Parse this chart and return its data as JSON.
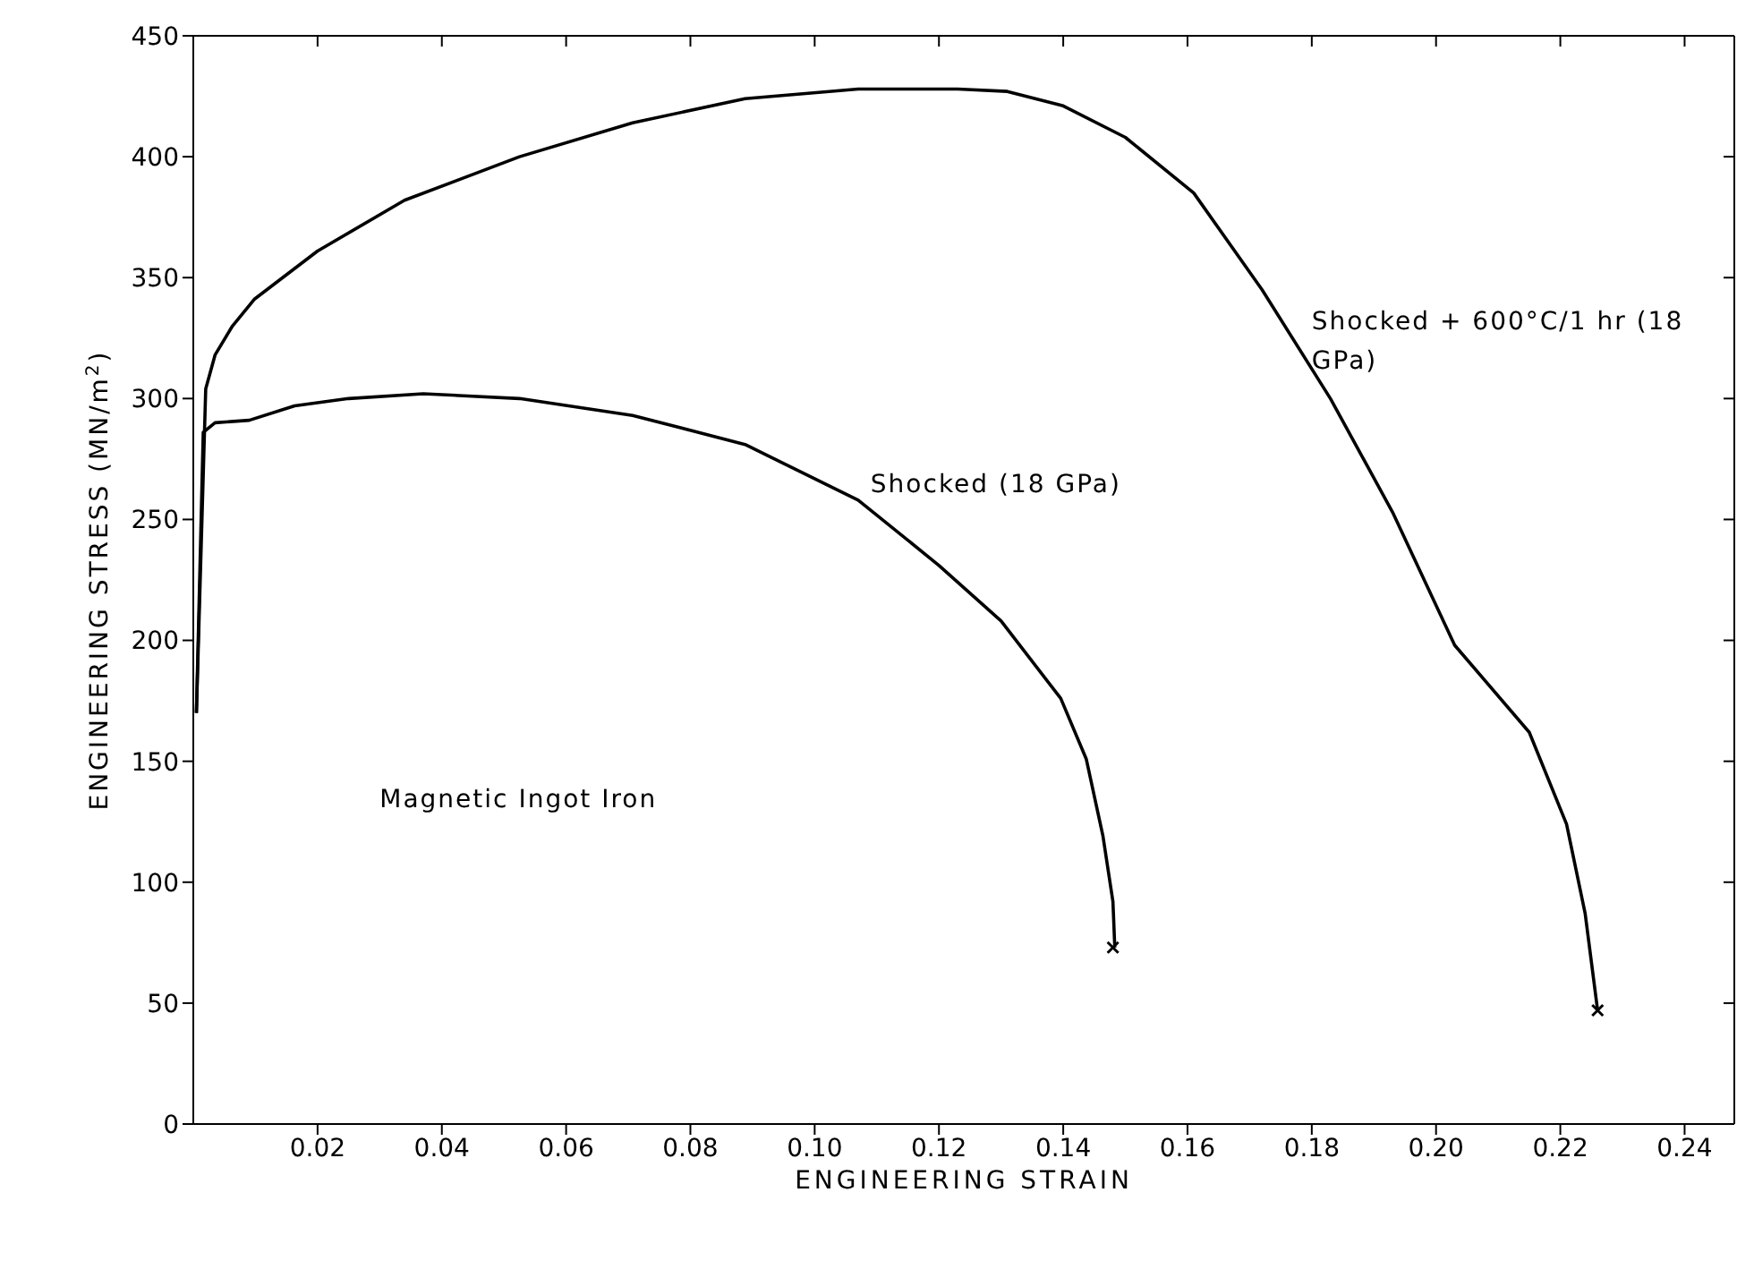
{
  "chart_data": {
    "type": "line",
    "xlabel": "ENGINEERING STRAIN",
    "ylabel": "ENGINEERING STRESS (MN/m$^{2}$)",
    "annotations": [
      "Magnetic Ingot Iron"
    ],
    "xlim": [
      0,
      0.248
    ],
    "xticks": [
      0.02,
      0.04,
      0.06,
      0.08,
      {
        "value": 0.1,
        "label": "0.10"
      },
      0.12,
      0.14,
      0.16,
      0.18,
      {
        "value": 0.2,
        "label": "0.20"
      },
      0.22,
      0.24
    ],
    "ylim": [
      0,
      450
    ],
    "yticks": [
      0,
      50,
      100,
      150,
      200,
      250,
      300,
      350,
      400,
      450
    ],
    "grid": false,
    "legend": false,
    "marker": "none",
    "line_style": "solid",
    "series": [
      {
        "name": "Shocked (18 GPa)",
        "color": "#000000",
        "x": [
          0.0005,
          0.0016,
          0.0035,
          0.009,
          0.0163,
          0.025,
          0.037,
          0.0525,
          0.0707,
          0.0888,
          0.107,
          0.12,
          0.13,
          0.1396,
          0.1437,
          0.1464,
          0.148,
          0.1483
        ],
        "values": [
          170,
          286,
          290,
          291,
          297,
          300,
          302,
          300,
          293,
          281,
          258,
          231,
          208,
          176,
          151,
          119,
          92,
          73
        ]
      },
      {
        "name": "Shocked + 600°C/1 hr (18 GPa)",
        "color": "#000000",
        "x": [
          0.0005,
          0.002,
          0.0035,
          0.0063,
          0.0098,
          0.02,
          0.034,
          0.0525,
          0.0707,
          0.0888,
          0.107,
          0.123,
          0.131,
          0.14,
          0.15,
          0.161,
          0.172,
          0.183,
          0.193,
          0.203,
          0.215,
          0.221,
          0.224,
          0.226
        ],
        "values": [
          170,
          304,
          318,
          330,
          341,
          361,
          382,
          400,
          414,
          424,
          428,
          428,
          427,
          421,
          408,
          385,
          345,
          300,
          253,
          198,
          162,
          124,
          87,
          47
        ]
      },
      {
        "type": "scatter",
        "marker": "cross",
        "color": "#000000",
        "x": [
          0.148,
          0.226
        ],
        "values": [
          73,
          47
        ]
      }
    ]
  }
}
